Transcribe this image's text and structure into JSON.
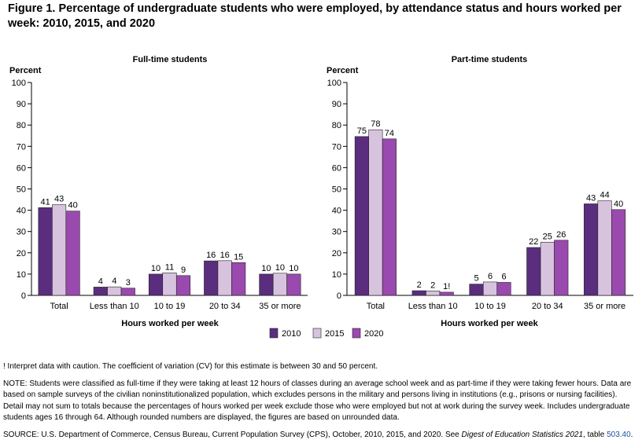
{
  "figure": {
    "title": "Figure 1. Percentage of undergraduate students who were employed, by attendance status and hours worked per week: 2010, 2015, and 2020"
  },
  "chart_data": {
    "type": "bar",
    "ylabel": "Percent",
    "xlabel": "Hours worked per week",
    "ylim": [
      0,
      100
    ],
    "yticks": [
      0,
      10,
      20,
      30,
      40,
      50,
      60,
      70,
      80,
      90,
      100
    ],
    "categories": [
      "Total",
      "Less than 10",
      "10 to 19",
      "20 to 34",
      "35 or more"
    ],
    "legend": [
      {
        "name": "2010",
        "color": "#5a2d7e"
      },
      {
        "name": "2015",
        "color": "#d8c3df"
      },
      {
        "name": "2020",
        "color": "#9a4aae"
      }
    ],
    "panels": [
      {
        "title": "Full-time students",
        "series": [
          {
            "name": "2010",
            "values": [
              41.2,
              3.9,
              10.0,
              16.2,
              10.0
            ],
            "labels": [
              "41",
              "4",
              "10",
              "16",
              "10"
            ]
          },
          {
            "name": "2015",
            "values": [
              42.6,
              4.0,
              10.6,
              16.3,
              10.4
            ],
            "labels": [
              "43",
              "4",
              "11",
              "16",
              "10"
            ]
          },
          {
            "name": "2020",
            "values": [
              39.6,
              3.4,
              9.3,
              15.4,
              10.0
            ],
            "labels": [
              "40",
              "3",
              "9",
              "15",
              "10"
            ]
          }
        ]
      },
      {
        "title": "Part-time students",
        "series": [
          {
            "name": "2010",
            "values": [
              74.6,
              2.2,
              5.3,
              22.5,
              43.0
            ],
            "labels": [
              "75",
              "2",
              "5",
              "22",
              "43"
            ]
          },
          {
            "name": "2015",
            "values": [
              77.8,
              2.1,
              6.3,
              25.0,
              44.4
            ],
            "labels": [
              "78",
              "2",
              "6",
              "25",
              "44"
            ]
          },
          {
            "name": "2020",
            "values": [
              73.5,
              1.5,
              6.1,
              25.9,
              40.3
            ],
            "labels": [
              "74",
              "1!",
              "6",
              "26",
              "40"
            ]
          }
        ]
      }
    ]
  },
  "notes": {
    "interpret": "! Interpret data with caution. The coefficient of variation (CV) for this estimate is between 30 and 50 percent.",
    "note": "NOTE: Students were classified as full-time if they were taking at least 12 hours of classes during an average school week and as part-time if they were taking fewer hours. Data are based on sample surveys of the civilian noninstitutionalized population, which excludes persons in the military and persons living in institutions (e.g., prisons or nursing facilities). Detail may not sum to totals because the percentages of hours worked per week exclude those who were employed but not at work during the survey week. Includes undergraduate students ages 16 through 64. Although rounded numbers are displayed, the figures are based on unrounded data.",
    "source_prefix": "SOURCE: U.S. Department of Commerce, Census Bureau, Current Population Survey (CPS), October, 2010, 2015, and 2020. See ",
    "source_italic": "Digest of Education Statistics 2021",
    "source_mid": ", table ",
    "source_link": "503.40",
    "source_end": "."
  }
}
